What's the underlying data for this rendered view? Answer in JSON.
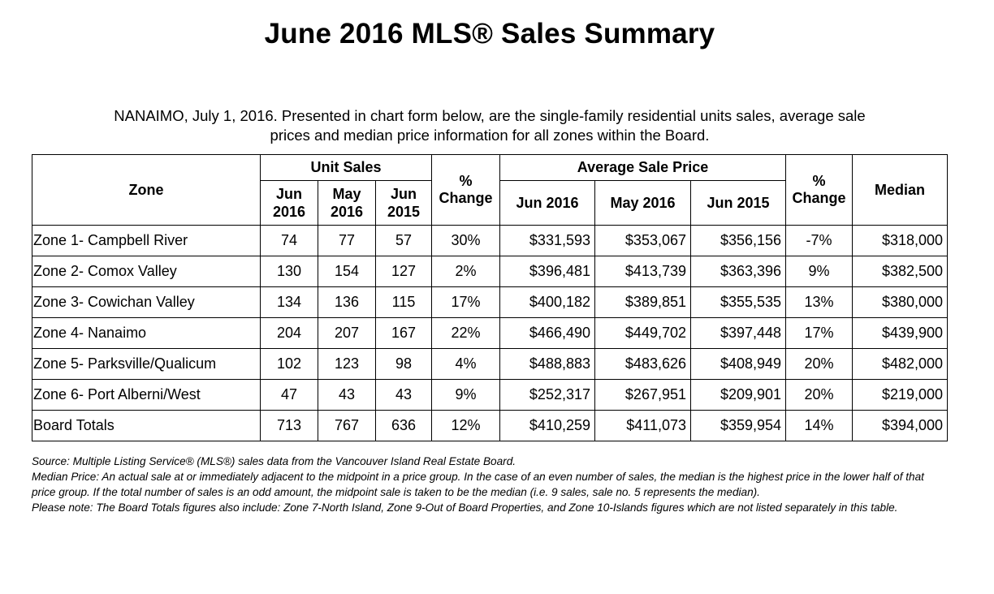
{
  "title": "June 2016 MLS® Sales Summary",
  "intro": {
    "line1": "NANAIMO, July 1, 2016.  Presented in chart form below, are the single-family residential units sales, average sale",
    "line2": "prices and median price information for all zones within the Board."
  },
  "table": {
    "headers": {
      "zone": "Zone",
      "unit_sales": "Unit Sales",
      "pct_change_1": [
        "%",
        "Change"
      ],
      "avg_sale_price": "Average Sale Price",
      "pct_change_2": [
        "%",
        "Change"
      ],
      "median": "Median",
      "unit_cols": [
        [
          "Jun",
          "2016"
        ],
        [
          "May",
          "2016"
        ],
        [
          "Jun",
          "2015"
        ]
      ],
      "price_cols": [
        "Jun 2016",
        "May 2016",
        "Jun 2015"
      ]
    },
    "rows": [
      {
        "zone": "Zone 1- Campbell River",
        "jun16": "74",
        "may16": "77",
        "jun15": "57",
        "pct1": "30%",
        "p_jun16": "$331,593",
        "p_may16": "$353,067",
        "p_jun15": "$356,156",
        "pct2": "-7%",
        "median": "$318,000"
      },
      {
        "zone": "Zone 2- Comox Valley",
        "jun16": "130",
        "may16": "154",
        "jun15": "127",
        "pct1": "2%",
        "p_jun16": "$396,481",
        "p_may16": "$413,739",
        "p_jun15": "$363,396",
        "pct2": "9%",
        "median": "$382,500"
      },
      {
        "zone": "Zone 3- Cowichan Valley",
        "jun16": "134",
        "may16": "136",
        "jun15": "115",
        "pct1": "17%",
        "p_jun16": "$400,182",
        "p_may16": "$389,851",
        "p_jun15": "$355,535",
        "pct2": "13%",
        "median": "$380,000"
      },
      {
        "zone": "Zone 4- Nanaimo",
        "jun16": "204",
        "may16": "207",
        "jun15": "167",
        "pct1": "22%",
        "p_jun16": "$466,490",
        "p_may16": "$449,702",
        "p_jun15": "$397,448",
        "pct2": "17%",
        "median": "$439,900"
      },
      {
        "zone": "Zone 5- Parksville/Qualicum",
        "jun16": "102",
        "may16": "123",
        "jun15": "98",
        "pct1": "4%",
        "p_jun16": "$488,883",
        "p_may16": "$483,626",
        "p_jun15": "$408,949",
        "pct2": "20%",
        "median": "$482,000"
      },
      {
        "zone": "Zone 6- Port Alberni/West",
        "jun16": "47",
        "may16": "43",
        "jun15": "43",
        "pct1": "9%",
        "p_jun16": "$252,317",
        "p_may16": "$267,951",
        "p_jun15": "$209,901",
        "pct2": "20%",
        "median": "$219,000"
      },
      {
        "zone": "Board Totals",
        "jun16": "713",
        "may16": "767",
        "jun15": "636",
        "pct1": "12%",
        "p_jun16": "$410,259",
        "p_may16": "$411,073",
        "p_jun15": "$359,954",
        "pct2": "14%",
        "median": "$394,000"
      }
    ]
  },
  "notes": {
    "source": "Source: Multiple Listing Service® (MLS®) sales data from the Vancouver Island Real Estate Board.",
    "median": "Median Price: An actual sale at or immediately adjacent to the midpoint in a price group. In the case of an even number of sales, the median is the highest price in the lower half of that price group. If the total number of sales is an odd amount, the midpoint sale is taken to be the median (i.e. 9 sales, sale no. 5 represents the median).",
    "please": "Please note: The Board Totals figures also include: Zone 7-North Island, Zone 9-Out of Board Properties, and Zone 10-Islands figures which are not listed separately in this table."
  }
}
